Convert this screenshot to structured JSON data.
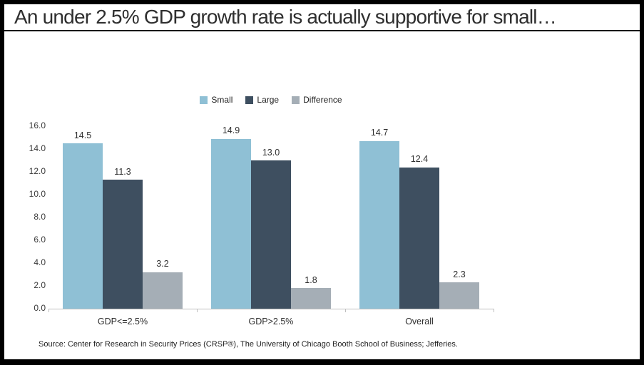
{
  "title": "An under 2.5% GDP growth rate is actually supportive for small…",
  "source": "Source: Center for Research in Security Prices (CRSP®), The University of Chicago Booth School of Business; Jefferies.",
  "chart_data": {
    "type": "bar",
    "categories": [
      "GDP<=2.5%",
      "GDP>2.5%",
      "Overall"
    ],
    "series": [
      {
        "name": "Small",
        "color": "#8FC0D5",
        "values": [
          14.5,
          14.9,
          14.7
        ]
      },
      {
        "name": "Large",
        "color": "#3E4F60",
        "values": [
          11.3,
          13.0,
          12.4
        ]
      },
      {
        "name": "Difference",
        "color": "#A5AEB6",
        "values": [
          3.2,
          1.8,
          2.3
        ]
      }
    ],
    "value_label_decimals": 1,
    "title": "",
    "xlabel": "",
    "ylabel": "",
    "ylim": [
      0,
      16
    ],
    "y_ticks": [
      "16.0",
      "14.0",
      "12.0",
      "10.0",
      "8.0",
      "6.0",
      "4.0",
      "2.0",
      "0.0"
    ],
    "grid": false,
    "legend_position": "top",
    "axis_color": "#BFBFBF"
  }
}
